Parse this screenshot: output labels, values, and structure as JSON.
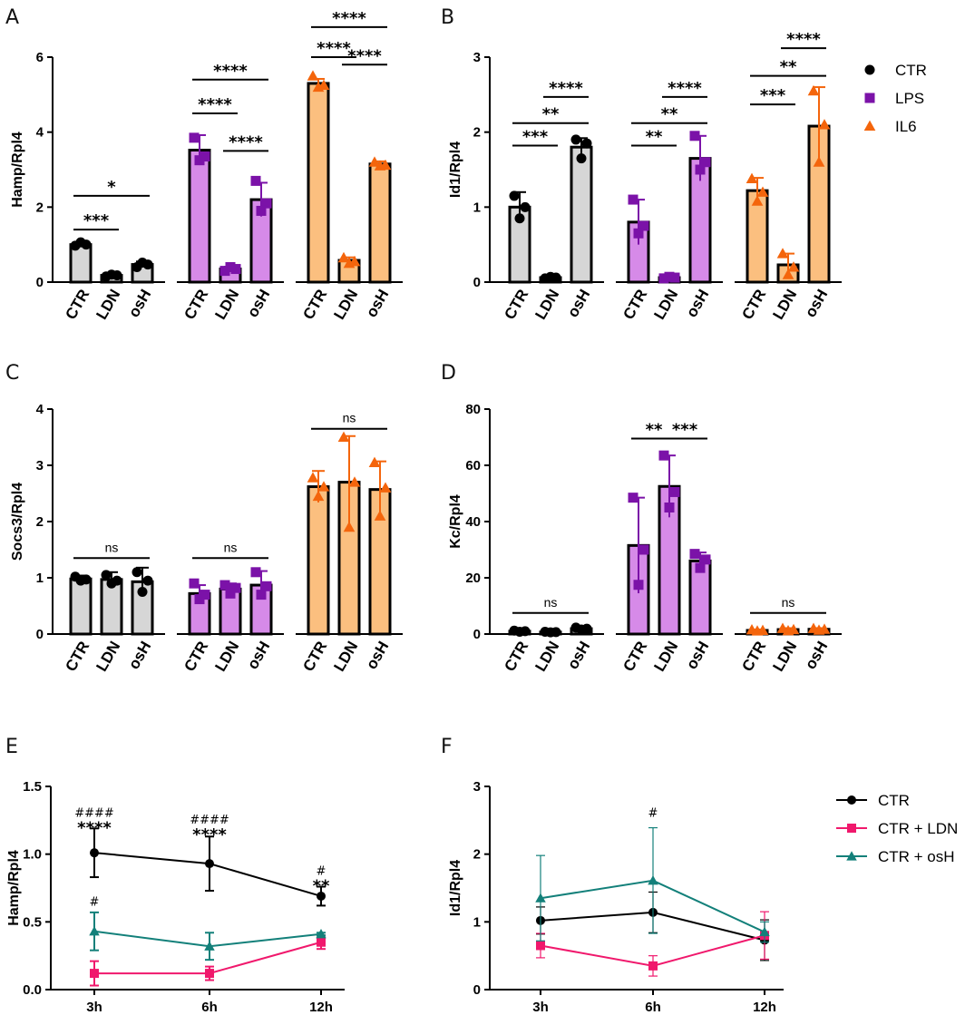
{
  "colors": {
    "CTR": "#000000",
    "LPS": "#7b12a8",
    "IL6": "#f4650c",
    "CTR_fill": "#d6d6d6",
    "LPS_fill": "#d68ae8",
    "IL6_fill": "#fbbf7f",
    "LDN_line": "#f0186c",
    "osH_line": "#13807a"
  },
  "legend_top": {
    "entries": [
      "CTR",
      "LPS",
      "IL6"
    ]
  },
  "legend_bottom": {
    "entries": [
      "CTR",
      "CTR + LDN",
      "CTR + osH"
    ]
  },
  "chart_data": [
    {
      "panel": "A",
      "type": "bar",
      "ylabel": "Hamp/Rpl4",
      "ylim": [
        0,
        6
      ],
      "yticks": [
        0,
        2,
        4,
        6
      ],
      "groups": [
        {
          "name": "CTR",
          "categories": [
            "CTR",
            "LDN",
            "osH"
          ],
          "values": [
            1.0,
            0.18,
            0.47
          ],
          "sd": [
            0.07,
            0.03,
            0.08
          ],
          "points": [
            [
              0.97,
              1.0,
              1.06
            ],
            [
              0.15,
              0.18,
              0.2
            ],
            [
              0.4,
              0.47,
              0.52
            ]
          ]
        },
        {
          "name": "LPS",
          "categories": [
            "CTR",
            "LDN",
            "osH"
          ],
          "values": [
            3.52,
            0.35,
            2.2
          ],
          "sd": [
            0.4,
            0.06,
            0.45
          ],
          "points": [
            [
              3.85,
              3.35,
              3.25
            ],
            [
              0.3,
              0.35,
              0.4
            ],
            [
              2.7,
              2.1,
              1.9
            ]
          ]
        },
        {
          "name": "IL6",
          "categories": [
            "CTR",
            "LDN",
            "osH"
          ],
          "values": [
            5.3,
            0.58,
            3.15
          ],
          "sd": [
            0.12,
            0.08,
            0.07
          ],
          "points": [
            [
              5.5,
              5.25,
              5.2
            ],
            [
              0.65,
              0.55,
              0.5
            ],
            [
              3.2,
              3.12,
              3.1
            ]
          ]
        }
      ],
      "comparisons": [
        {
          "group": 0,
          "from": 0,
          "to": 1,
          "label": "***",
          "level": 1.4
        },
        {
          "group": 0,
          "from": 0,
          "to": 2,
          "label": "*",
          "level": 2.3
        },
        {
          "group": 1,
          "from": 1,
          "to": 2,
          "label": "****",
          "level": 3.5
        },
        {
          "group": 1,
          "from": 0,
          "to": 1,
          "label": "****",
          "level": 4.5
        },
        {
          "group": 1,
          "from": 0,
          "to": 2,
          "label": "****",
          "level": 5.4
        },
        {
          "group": 2,
          "from": 1,
          "to": 2,
          "label": "****",
          "level": 5.8
        },
        {
          "group": 2,
          "from": 0,
          "to": 1,
          "label": "****",
          "level": 6.0
        },
        {
          "group": 2,
          "from": 0,
          "to": 2,
          "label": "****",
          "level": 6.8
        }
      ]
    },
    {
      "panel": "B",
      "type": "bar",
      "ylabel": "Id1/Rpl4",
      "ylim": [
        0,
        3
      ],
      "yticks": [
        0,
        1,
        2,
        3
      ],
      "groups": [
        {
          "name": "CTR",
          "categories": [
            "CTR",
            "LDN",
            "osH"
          ],
          "values": [
            1.0,
            0.06,
            1.8
          ],
          "sd": [
            0.2,
            0.02,
            0.12
          ],
          "points": [
            [
              1.15,
              1.0,
              0.85
            ],
            [
              0.05,
              0.06,
              0.07
            ],
            [
              1.9,
              1.85,
              1.65
            ]
          ]
        },
        {
          "name": "LPS",
          "categories": [
            "CTR",
            "LDN",
            "osH"
          ],
          "values": [
            0.8,
            0.06,
            1.65
          ],
          "sd": [
            0.3,
            0.01,
            0.3
          ],
          "points": [
            [
              1.1,
              0.75,
              0.65
            ],
            [
              0.05,
              0.06,
              0.07
            ],
            [
              1.95,
              1.6,
              1.5
            ]
          ]
        },
        {
          "name": "IL6",
          "categories": [
            "CTR",
            "LDN",
            "osH"
          ],
          "values": [
            1.22,
            0.23,
            2.08
          ],
          "sd": [
            0.17,
            0.15,
            0.52
          ],
          "points": [
            [
              1.38,
              1.2,
              1.08
            ],
            [
              0.38,
              0.2,
              0.1
            ],
            [
              2.55,
              2.1,
              1.6
            ]
          ]
        }
      ],
      "comparisons": [
        {
          "group": 0,
          "from": 0,
          "to": 1,
          "label": "***",
          "level": 1.82
        },
        {
          "group": 0,
          "from": 0,
          "to": 2,
          "label": "**",
          "level": 2.12
        },
        {
          "group": 0,
          "from": 1,
          "to": 2,
          "label": "****",
          "level": 2.47
        },
        {
          "group": 1,
          "from": 0,
          "to": 1,
          "label": "**",
          "level": 1.82
        },
        {
          "group": 1,
          "from": 0,
          "to": 2,
          "label": "**",
          "level": 2.12
        },
        {
          "group": 1,
          "from": 1,
          "to": 2,
          "label": "****",
          "level": 2.47
        },
        {
          "group": 2,
          "from": 0,
          "to": 1,
          "label": "***",
          "level": 2.37
        },
        {
          "group": 2,
          "from": 0,
          "to": 2,
          "label": "**",
          "level": 2.75
        },
        {
          "group": 2,
          "from": 1,
          "to": 2,
          "label": "****",
          "level": 3.12
        }
      ]
    },
    {
      "panel": "C",
      "type": "bar",
      "ylabel": "Socs3/Rpl4",
      "ylim": [
        0,
        4
      ],
      "yticks": [
        0,
        1,
        2,
        3,
        4
      ],
      "groups": [
        {
          "name": "CTR",
          "categories": [
            "CTR",
            "LDN",
            "osH"
          ],
          "values": [
            0.98,
            0.97,
            0.93
          ],
          "sd": [
            0.06,
            0.13,
            0.25
          ],
          "points": [
            [
              1.02,
              0.97,
              0.95
            ],
            [
              1.05,
              0.95,
              0.9
            ],
            [
              1.1,
              0.95,
              0.75
            ]
          ]
        },
        {
          "name": "LPS",
          "categories": [
            "CTR",
            "LDN",
            "osH"
          ],
          "values": [
            0.72,
            0.8,
            0.87
          ],
          "sd": [
            0.15,
            0.1,
            0.25
          ],
          "points": [
            [
              0.9,
              0.7,
              0.62
            ],
            [
              0.87,
              0.82,
              0.72
            ],
            [
              1.1,
              0.85,
              0.7
            ]
          ]
        },
        {
          "name": "IL6",
          "categories": [
            "CTR",
            "LDN",
            "osH"
          ],
          "values": [
            2.62,
            2.7,
            2.57
          ],
          "sd": [
            0.28,
            0.82,
            0.5
          ],
          "points": [
            [
              2.78,
              2.62,
              2.45
            ],
            [
              3.5,
              2.7,
              1.9
            ],
            [
              3.05,
              2.6,
              2.1
            ]
          ]
        }
      ],
      "comparisons": [
        {
          "group": 0,
          "from": 0,
          "to": 2,
          "label": "ns",
          "level": 1.35
        },
        {
          "group": 1,
          "from": 0,
          "to": 2,
          "label": "ns",
          "level": 1.35
        },
        {
          "group": 2,
          "from": 0,
          "to": 2,
          "label": "ns",
          "level": 3.65
        }
      ]
    },
    {
      "panel": "D",
      "type": "bar",
      "ylabel": "Kc/Rpl4",
      "ylim": [
        0,
        80
      ],
      "yticks": [
        0,
        20,
        40,
        60,
        80
      ],
      "groups": [
        {
          "name": "CTR",
          "categories": [
            "CTR",
            "LDN",
            "osH"
          ],
          "values": [
            1.0,
            0.7,
            1.9
          ],
          "sd": [
            0.3,
            0.2,
            0.5
          ],
          "points": [
            [
              1.2,
              1.0,
              0.8
            ],
            [
              0.8,
              0.7,
              0.6
            ],
            [
              2.3,
              1.9,
              1.6
            ]
          ]
        },
        {
          "name": "LPS",
          "categories": [
            "CTR",
            "LDN",
            "osH"
          ],
          "values": [
            31.5,
            52.5,
            26.0
          ],
          "sd": [
            17.0,
            11.0,
            3.0
          ],
          "points": [
            [
              48.5,
              30.0,
              17.5
            ],
            [
              63.5,
              50.5,
              45.0
            ],
            [
              28.5,
              26.5,
              23.5
            ]
          ]
        },
        {
          "name": "IL6",
          "categories": [
            "CTR",
            "LDN",
            "osH"
          ],
          "values": [
            1.3,
            1.6,
            1.7
          ],
          "sd": [
            0.3,
            0.5,
            0.4
          ],
          "points": [
            [
              1.5,
              1.3,
              1.1
            ],
            [
              2.0,
              1.6,
              1.2
            ],
            [
              2.0,
              1.7,
              1.4
            ]
          ]
        }
      ],
      "comparisons": [
        {
          "group": 0,
          "from": 0,
          "to": 2,
          "label": "ns",
          "level": 7.5
        },
        {
          "group": 1,
          "from": 0,
          "to": 1,
          "label": "**",
          "level": 69.5
        },
        {
          "group": 1,
          "from": 1,
          "to": 2,
          "label": "***",
          "level": 69.5
        },
        {
          "group": 2,
          "from": 0,
          "to": 2,
          "label": "ns",
          "level": 7.5
        }
      ]
    },
    {
      "panel": "E",
      "type": "line",
      "ylabel": "Hamp/Rpl4",
      "ylim": [
        0,
        1.5
      ],
      "yticks": [
        "0.0",
        "0.5",
        "1.0",
        "1.5"
      ],
      "x": [
        "3h",
        "6h",
        "12h"
      ],
      "series": [
        {
          "name": "CTR",
          "values": [
            1.01,
            0.93,
            0.69
          ],
          "sd": [
            0.18,
            0.2,
            0.07
          ]
        },
        {
          "name": "CTR + LDN",
          "values": [
            0.12,
            0.12,
            0.35
          ],
          "sd": [
            0.09,
            0.05,
            0.05
          ]
        },
        {
          "name": "CTR + osH",
          "values": [
            0.43,
            0.32,
            0.41
          ],
          "sd": [
            0.14,
            0.1,
            0.01
          ]
        }
      ],
      "annotations": [
        {
          "x": 0,
          "stars": "****",
          "hash": "####",
          "y": 1.25
        },
        {
          "x": 1,
          "stars": "****",
          "hash": "####",
          "y": 1.2
        },
        {
          "x": 2,
          "stars": "**",
          "hash": "#",
          "y": 0.82
        },
        {
          "x": 0,
          "stars": "",
          "hash": "#",
          "y": 0.62
        }
      ]
    },
    {
      "panel": "F",
      "type": "line",
      "ylabel": "Id1/Rpl4",
      "ylim": [
        0,
        3
      ],
      "yticks": [
        "0",
        "1",
        "2",
        "3"
      ],
      "x": [
        "3h",
        "6h",
        "12h"
      ],
      "series": [
        {
          "name": "CTR",
          "values": [
            1.02,
            1.14,
            0.73
          ],
          "sd": [
            0.2,
            0.3,
            0.3
          ]
        },
        {
          "name": "CTR + LDN",
          "values": [
            0.65,
            0.35,
            0.8
          ],
          "sd": [
            0.18,
            0.15,
            0.35
          ]
        },
        {
          "name": "CTR + osH",
          "values": [
            1.35,
            1.61,
            0.85
          ],
          "sd": [
            0.63,
            0.78,
            0.15
          ]
        }
      ],
      "annotations": [
        {
          "x": 1,
          "stars": "",
          "hash": "#",
          "y": 2.55
        }
      ]
    }
  ]
}
